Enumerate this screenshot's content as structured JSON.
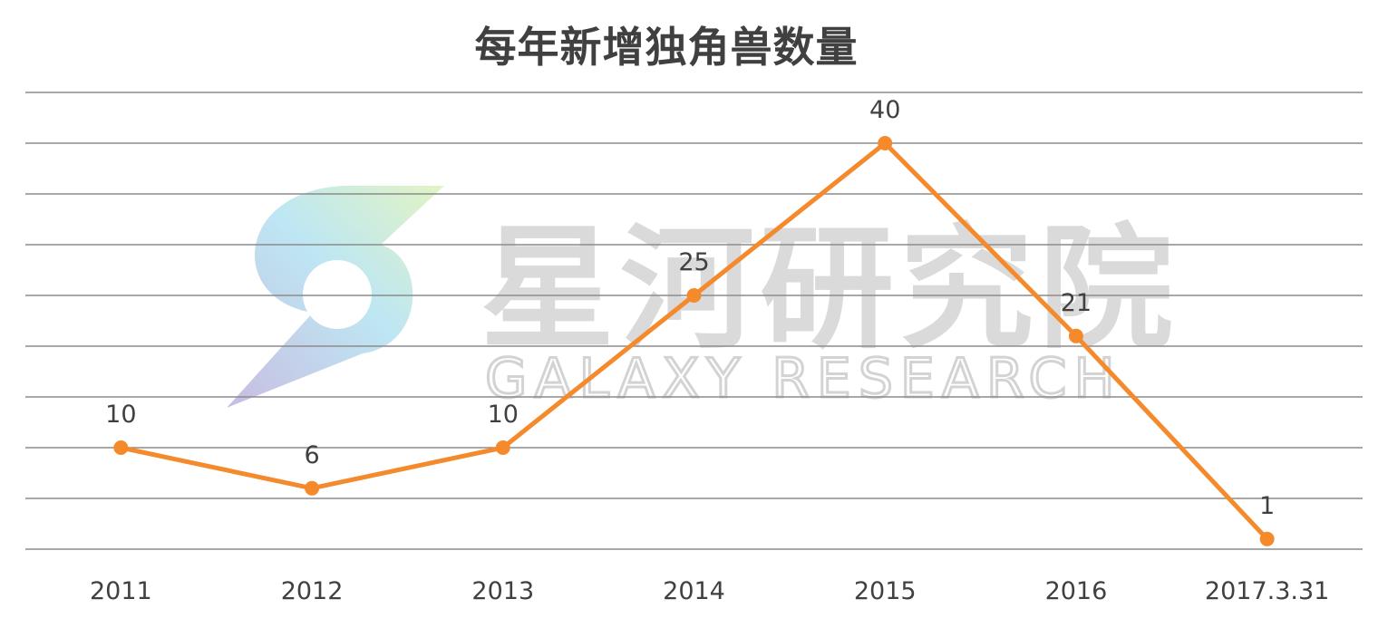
{
  "chart_data": {
    "type": "line",
    "title": "每年新增独角兽数量",
    "xlabel": "",
    "ylabel": "",
    "categories": [
      "2011",
      "2012",
      "2013",
      "2014",
      "2015",
      "2016",
      "2017.3.31"
    ],
    "series": [
      {
        "values": [
          10,
          6,
          10,
          25,
          40,
          21,
          1
        ]
      }
    ],
    "data_labels": true,
    "ylim": [
      0,
      45
    ],
    "ytick_step": 5,
    "grid": true,
    "legend": "none",
    "series_color": "#f58a2c"
  },
  "watermark": {
    "text_cn": "星河研究院",
    "text_en": "GALAXY RESEARCH"
  }
}
